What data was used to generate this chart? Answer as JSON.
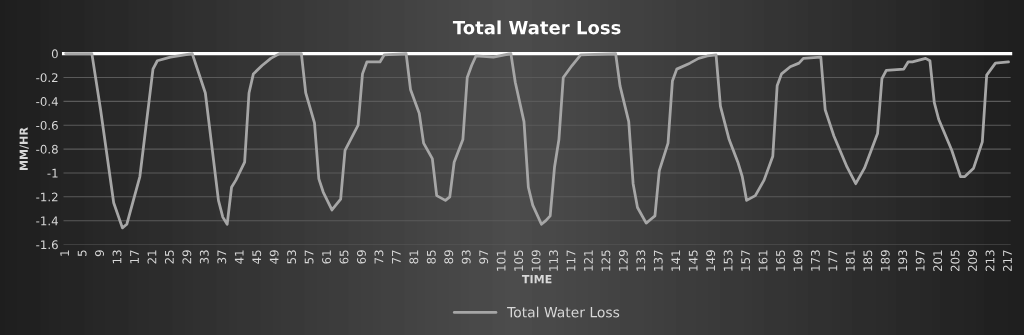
{
  "chart_data": {
    "type": "line",
    "title": "Total Water Loss",
    "xlabel": "TIME",
    "ylabel": "MM/HR",
    "x": [
      1,
      7,
      9,
      12,
      14,
      15,
      18,
      21,
      22,
      25,
      30,
      33,
      36,
      37,
      38,
      39,
      40,
      42,
      43,
      44,
      46,
      48,
      50,
      55,
      56,
      58,
      59,
      60,
      62,
      64,
      65,
      68,
      69,
      70,
      73,
      74,
      79,
      80,
      82,
      83,
      85,
      86,
      88,
      89,
      90,
      92,
      93,
      94,
      95,
      99,
      103,
      104,
      106,
      107,
      108,
      110,
      111,
      112,
      113,
      114,
      115,
      117,
      119,
      127,
      128,
      130,
      131,
      132,
      134,
      135,
      136,
      137,
      139,
      140,
      141,
      144,
      146,
      148,
      150,
      151,
      153,
      155,
      156,
      157,
      159,
      161,
      163,
      164,
      165,
      167,
      169,
      170,
      174,
      175,
      176,
      177,
      180,
      182,
      184,
      187,
      188,
      189,
      193,
      194,
      195,
      198,
      199,
      200,
      201,
      204,
      206,
      207,
      209,
      211,
      212,
      214,
      217
    ],
    "series": [
      {
        "name": "Total Water Loss",
        "color": "#a6a6a6",
        "values": [
          0,
          0,
          -0.47,
          -1.25,
          -1.46,
          -1.43,
          -1.03,
          -0.13,
          -0.06,
          -0.03,
          0,
          -0.33,
          -1.23,
          -1.37,
          -1.43,
          -1.12,
          -1.06,
          -0.91,
          -0.33,
          -0.17,
          -0.1,
          -0.04,
          0,
          0,
          -0.33,
          -0.58,
          -1.05,
          -1.16,
          -1.31,
          -1.22,
          -0.81,
          -0.6,
          -0.17,
          -0.07,
          -0.07,
          -0.01,
          0,
          -0.3,
          -0.5,
          -0.75,
          -0.88,
          -1.19,
          -1.23,
          -1.2,
          -0.91,
          -0.72,
          -0.2,
          -0.1,
          -0.02,
          -0.03,
          0,
          -0.24,
          -0.57,
          -1.12,
          -1.27,
          -1.43,
          -1.4,
          -1.36,
          -0.95,
          -0.72,
          -0.2,
          -0.1,
          -0.01,
          0,
          -0.27,
          -0.57,
          -1.09,
          -1.29,
          -1.42,
          -1.39,
          -1.36,
          -0.98,
          -0.75,
          -0.23,
          -0.13,
          -0.08,
          -0.04,
          -0.02,
          -0.01,
          -0.44,
          -0.72,
          -0.91,
          -1.03,
          -1.23,
          -1.19,
          -1.06,
          -0.86,
          -0.27,
          -0.17,
          -0.11,
          -0.08,
          -0.04,
          -0.03,
          -0.47,
          -0.58,
          -0.69,
          -0.95,
          -1.09,
          -0.96,
          -0.67,
          -0.21,
          -0.14,
          -0.13,
          -0.07,
          -0.07,
          -0.04,
          -0.06,
          -0.41,
          -0.55,
          -0.81,
          -1.03,
          -1.03,
          -0.96,
          -0.74,
          -0.18,
          -0.08,
          -0.07
        ]
      }
    ],
    "xlim": [
      0.5,
      217.5
    ],
    "xticks": [
      1,
      5,
      9,
      13,
      17,
      21,
      25,
      29,
      33,
      37,
      41,
      45,
      49,
      53,
      57,
      61,
      65,
      69,
      73,
      77,
      81,
      85,
      89,
      93,
      97,
      101,
      105,
      109,
      113,
      117,
      121,
      125,
      129,
      133,
      137,
      141,
      145,
      149,
      153,
      157,
      161,
      165,
      169,
      173,
      177,
      181,
      185,
      189,
      193,
      197,
      201,
      205,
      209,
      213,
      217
    ],
    "ylim": [
      -1.6,
      0
    ],
    "yticks": [
      0,
      -0.2,
      -0.4,
      -0.6,
      -0.8,
      -1,
      -1.2,
      -1.4,
      -1.6
    ],
    "ref_lines": [
      {
        "axis": "y",
        "value": 0,
        "color": "#ffffff"
      }
    ],
    "grid": "y",
    "legend": "bottom",
    "line_style": "solid",
    "marker": "none"
  }
}
